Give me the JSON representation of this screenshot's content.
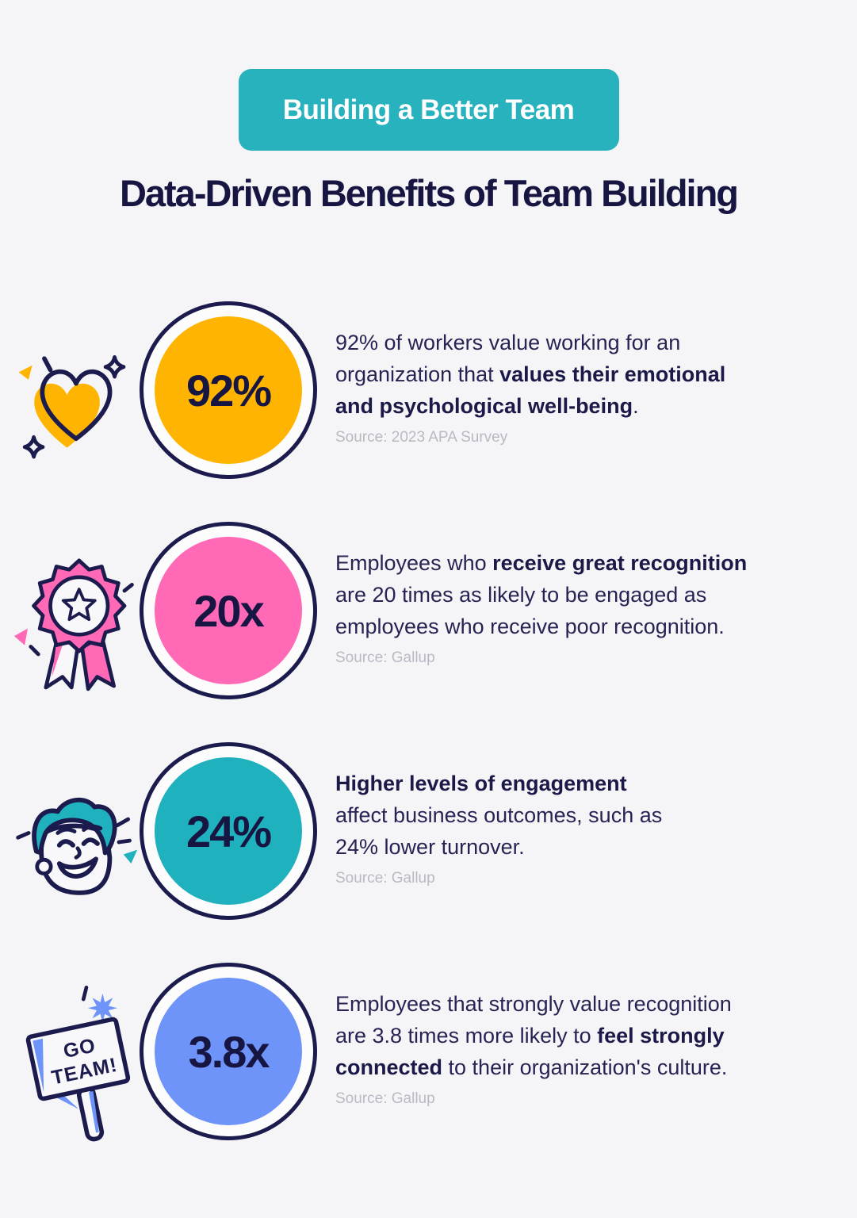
{
  "header": {
    "badge_label": "Building a Better Team",
    "title": "Data-Driven Benefits of Team Building"
  },
  "colors": {
    "badge_teal": "#27b2be",
    "navy_outline": "#1b1b4d",
    "title_navy": "#171541",
    "body_navy": "#272353",
    "source_gray": "#b9b9c4",
    "background": "#f5f5f8",
    "yellow": "#ffb402",
    "pink": "#ff69b6",
    "teal": "#1fb1bd",
    "blue": "#6f94f9"
  },
  "stats": [
    {
      "value": "92%",
      "icon": "heart-icon",
      "circle_color": "#ffb402",
      "segments": [
        {
          "text": "92% of workers value working for an\norganization that ",
          "bold": false
        },
        {
          "text": "values their emotional\nand psychological well-being",
          "bold": true
        },
        {
          "text": ".",
          "bold": false
        }
      ],
      "source": "Source: 2023 APA Survey"
    },
    {
      "value": "20x",
      "icon": "award-ribbon-icon",
      "circle_color": "#ff69b6",
      "segments": [
        {
          "text": "Employees who ",
          "bold": false
        },
        {
          "text": "receive great recognition",
          "bold": true
        },
        {
          "text": "\nare 20 times as likely to be engaged as\nemployees who receive poor recognition.",
          "bold": false
        }
      ],
      "source": "Source: Gallup"
    },
    {
      "value": "24%",
      "icon": "happy-face-icon",
      "circle_color": "#1fb1bd",
      "segments": [
        {
          "text": "Higher levels of engagement",
          "bold": true
        },
        {
          "text": "\naffect business outcomes, such as\n24% lower turnover.",
          "bold": false
        }
      ],
      "source": "Source: Gallup"
    },
    {
      "value": "3.8x",
      "icon": "go-team-sign-icon",
      "circle_color": "#6f94f9",
      "sign_lines": [
        "GO",
        "TEAM!"
      ],
      "segments": [
        {
          "text": "Employees that strongly value recognition\nare 3.8 times more likely to ",
          "bold": false
        },
        {
          "text": "feel strongly\nconnected",
          "bold": true
        },
        {
          "text": " to their organization's culture.",
          "bold": false
        }
      ],
      "source": "Source: Gallup"
    }
  ]
}
